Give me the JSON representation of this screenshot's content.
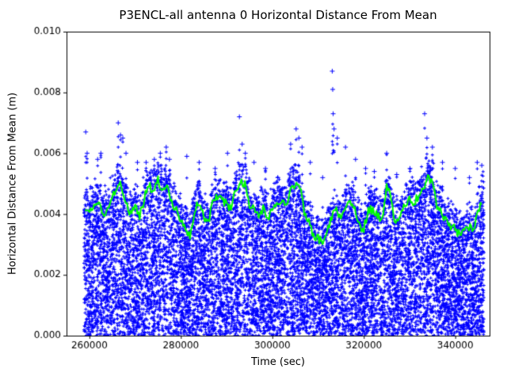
{
  "chart_data": {
    "type": "scatter",
    "title": "P3ENCL-all antenna 0 Horizontal Distance From Mean",
    "xlabel": "Time (sec)",
    "ylabel": "Horizontal Distance From Mean (m)",
    "xlim": [
      255000,
      347500
    ],
    "ylim": [
      0,
      0.01
    ],
    "x_ticks": {
      "values": [
        260000,
        280000,
        300000,
        320000,
        340000
      ],
      "labels": [
        "260000",
        "280000",
        "300000",
        "320000",
        "340000"
      ]
    },
    "y_ticks": {
      "values": [
        0,
        0.002,
        0.004,
        0.006,
        0.008,
        0.01
      ],
      "labels": [
        "0.000",
        "0.002",
        "0.004",
        "0.006",
        "0.008",
        "0.010"
      ]
    },
    "grid": false,
    "legend": null,
    "colors": {
      "scatter": "#0000ff",
      "mean_line": "#00ff00",
      "axes": "#000000",
      "background": "#ffffff"
    },
    "series": [
      {
        "name": "horizontal-distance-samples",
        "kind": "scatter-cloud",
        "marker": "+",
        "color": "#0000ff",
        "x_range": [
          258800,
          346300
        ],
        "n_points": 12000,
        "spread_above_mean": 0.0007
      },
      {
        "name": "outlier-spikes",
        "kind": "scatter",
        "marker": "+",
        "color": "#0000ff",
        "points": [
          [
            259200,
            0.0067
          ],
          [
            259500,
            0.006
          ],
          [
            261800,
            0.0058
          ],
          [
            262500,
            0.006
          ],
          [
            266300,
            0.007
          ],
          [
            266800,
            0.0066
          ],
          [
            267300,
            0.0065
          ],
          [
            268000,
            0.006
          ],
          [
            270500,
            0.0057
          ],
          [
            272400,
            0.0057
          ],
          [
            274200,
            0.0058
          ],
          [
            275500,
            0.006
          ],
          [
            276800,
            0.0062
          ],
          [
            277500,
            0.0058
          ],
          [
            281300,
            0.0059
          ],
          [
            284000,
            0.0057
          ],
          [
            287500,
            0.0055
          ],
          [
            290200,
            0.006
          ],
          [
            292800,
            0.0072
          ],
          [
            293400,
            0.0063
          ],
          [
            294100,
            0.006
          ],
          [
            296000,
            0.0057
          ],
          [
            298500,
            0.0055
          ],
          [
            301200,
            0.0052
          ],
          [
            304000,
            0.0063
          ],
          [
            305200,
            0.0068
          ],
          [
            305800,
            0.0065
          ],
          [
            306500,
            0.0062
          ],
          [
            308300,
            0.0057
          ],
          [
            311000,
            0.0052
          ],
          [
            313100,
            0.0087
          ],
          [
            313200,
            0.0081
          ],
          [
            313300,
            0.0073
          ],
          [
            313500,
            0.0068
          ],
          [
            314200,
            0.0065
          ],
          [
            316000,
            0.0062
          ],
          [
            318200,
            0.0058
          ],
          [
            320400,
            0.0055
          ],
          [
            322300,
            0.0054
          ],
          [
            325000,
            0.006
          ],
          [
            327200,
            0.0053
          ],
          [
            330100,
            0.0055
          ],
          [
            333300,
            0.0073
          ],
          [
            333800,
            0.0065
          ],
          [
            335000,
            0.0062
          ],
          [
            337200,
            0.0057
          ],
          [
            340000,
            0.0055
          ],
          [
            343100,
            0.0052
          ],
          [
            344800,
            0.0057
          ],
          [
            345800,
            0.0056
          ]
        ]
      },
      {
        "name": "running-mean",
        "kind": "line",
        "color": "#00ff00",
        "line_width": 2,
        "x_start": 259000,
        "x_step": 1000,
        "y": [
          0.0042,
          0.0041,
          0.0043,
          0.0045,
          0.004,
          0.0042,
          0.0046,
          0.0049,
          0.005,
          0.0044,
          0.004,
          0.0043,
          0.0039,
          0.0045,
          0.005,
          0.0047,
          0.0051,
          0.0048,
          0.0051,
          0.0044,
          0.0041,
          0.0038,
          0.0035,
          0.0033,
          0.0041,
          0.0044,
          0.0039,
          0.0037,
          0.0044,
          0.0046,
          0.0045,
          0.0043,
          0.0042,
          0.0048,
          0.0051,
          0.005,
          0.0043,
          0.0041,
          0.004,
          0.0042,
          0.0039,
          0.0041,
          0.0044,
          0.0045,
          0.0043,
          0.0048,
          0.005,
          0.0049,
          0.0041,
          0.0037,
          0.0033,
          0.0032,
          0.0031,
          0.0035,
          0.0039,
          0.0041,
          0.0038,
          0.0042,
          0.0044,
          0.0042,
          0.0036,
          0.0035,
          0.0042,
          0.0041,
          0.004,
          0.0038,
          0.005,
          0.0044,
          0.0037,
          0.0039,
          0.0043,
          0.0045,
          0.0044,
          0.0046,
          0.0048,
          0.0052,
          0.005,
          0.0043,
          0.004,
          0.0038,
          0.0036,
          0.0035,
          0.0033,
          0.0034,
          0.0036,
          0.0035,
          0.004,
          0.0046
        ]
      }
    ]
  }
}
